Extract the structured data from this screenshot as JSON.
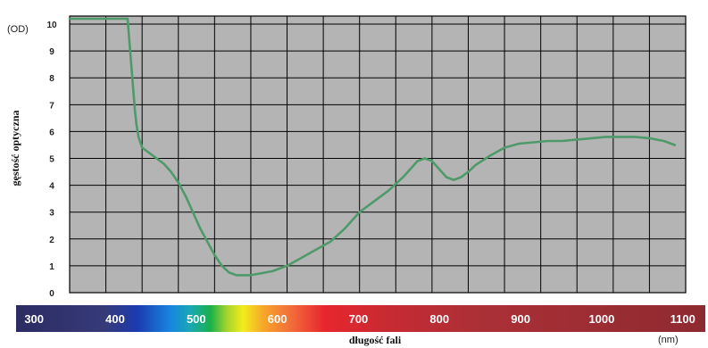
{
  "chart_data": {
    "type": "line",
    "title": "",
    "xlabel": "długość fali",
    "ylabel": "gęstość optyczna",
    "y_unit": "(OD)",
    "x_unit": "(nm)",
    "xlim": [
      280,
      1130
    ],
    "ylim": [
      0,
      10.3
    ],
    "y_ticks": [
      0,
      1,
      2,
      3,
      4,
      5,
      6,
      7,
      8,
      9,
      10
    ],
    "x_ticks": [
      300,
      400,
      500,
      600,
      700,
      800,
      900,
      1000,
      1100
    ],
    "grid": true,
    "line_color": "#4e9a6a",
    "plot_background": "#b4b4b4",
    "series": [
      {
        "x": [
          280,
          300,
          320,
          340,
          360,
          362,
          365,
          368,
          370,
          372,
          375,
          380,
          385,
          390,
          400,
          410,
          420,
          430,
          440,
          450,
          460,
          470,
          480,
          490,
          500,
          510,
          520,
          530,
          540,
          560,
          580,
          600,
          620,
          640,
          660,
          680,
          700,
          720,
          740,
          750,
          760,
          770,
          780,
          790,
          800,
          810,
          820,
          830,
          840,
          860,
          880,
          900,
          920,
          940,
          960,
          980,
          1000,
          1020,
          1040,
          1060,
          1080,
          1100,
          1115
        ],
        "values": [
          10.2,
          10.2,
          10.2,
          10.2,
          10.2,
          9.5,
          8.5,
          7.5,
          6.8,
          6.3,
          5.8,
          5.4,
          5.3,
          5.2,
          5.0,
          4.8,
          4.5,
          4.1,
          3.6,
          3.0,
          2.4,
          1.9,
          1.4,
          1.0,
          0.75,
          0.65,
          0.65,
          0.65,
          0.7,
          0.8,
          1.0,
          1.3,
          1.6,
          1.9,
          2.4,
          3.0,
          3.4,
          3.8,
          4.3,
          4.6,
          4.9,
          5.0,
          4.9,
          4.6,
          4.3,
          4.2,
          4.3,
          4.5,
          4.75,
          5.1,
          5.4,
          5.55,
          5.6,
          5.65,
          5.65,
          5.7,
          5.75,
          5.8,
          5.8,
          5.8,
          5.75,
          5.65,
          5.5
        ]
      }
    ],
    "spectrum_bar": [
      {
        "nm": 280,
        "color": "#2c2c62"
      },
      {
        "nm": 390,
        "color": "#363a78"
      },
      {
        "nm": 430,
        "color": "#1c3bb0"
      },
      {
        "nm": 470,
        "color": "#1786e0"
      },
      {
        "nm": 495,
        "color": "#1aa8b4"
      },
      {
        "nm": 520,
        "color": "#19b04a"
      },
      {
        "nm": 540,
        "color": "#a6d42c"
      },
      {
        "nm": 560,
        "color": "#f2ec1c"
      },
      {
        "nm": 585,
        "color": "#f7a62a"
      },
      {
        "nm": 620,
        "color": "#f26b3a"
      },
      {
        "nm": 660,
        "color": "#e8262e"
      },
      {
        "nm": 740,
        "color": "#c72a32"
      },
      {
        "nm": 850,
        "color": "#ab3036"
      },
      {
        "nm": 1130,
        "color": "#8e2a31"
      }
    ]
  }
}
